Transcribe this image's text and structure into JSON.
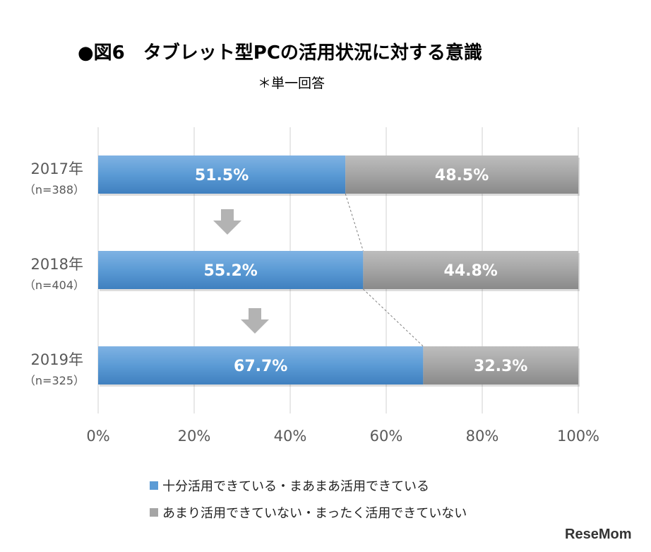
{
  "title": "●図6　タブレット型PCの活用状況に対する意識",
  "subtitle": "＊単一回答",
  "watermark": "ReseMom",
  "chart_data": {
    "type": "bar",
    "orientation": "horizontal",
    "stacked": true,
    "categories": [
      "2017年",
      "2018年",
      "2019年"
    ],
    "category_sublabels": [
      "（n=388）",
      "（n=404）",
      "（n=325）"
    ],
    "series": [
      {
        "name": "十分活用できている・まあまあ活用できている",
        "values": [
          51.5,
          55.2,
          67.7
        ],
        "labels": [
          "51.5%",
          "55.2%",
          "67.7%"
        ],
        "color": "#5b9bd5"
      },
      {
        "name": "あまり活用できていない・まったく活用できていない",
        "values": [
          48.5,
          44.8,
          32.3
        ],
        "labels": [
          "48.5%",
          "44.8%",
          "32.3%"
        ],
        "color": "#a5a5a5"
      }
    ],
    "xlim": [
      0,
      100
    ],
    "xticks": [
      "0%",
      "20%",
      "40%",
      "60%",
      "80%",
      "100%"
    ],
    "grid": true,
    "legend_position": "bottom",
    "connector_lines": true,
    "arrows_between_bars": true
  }
}
